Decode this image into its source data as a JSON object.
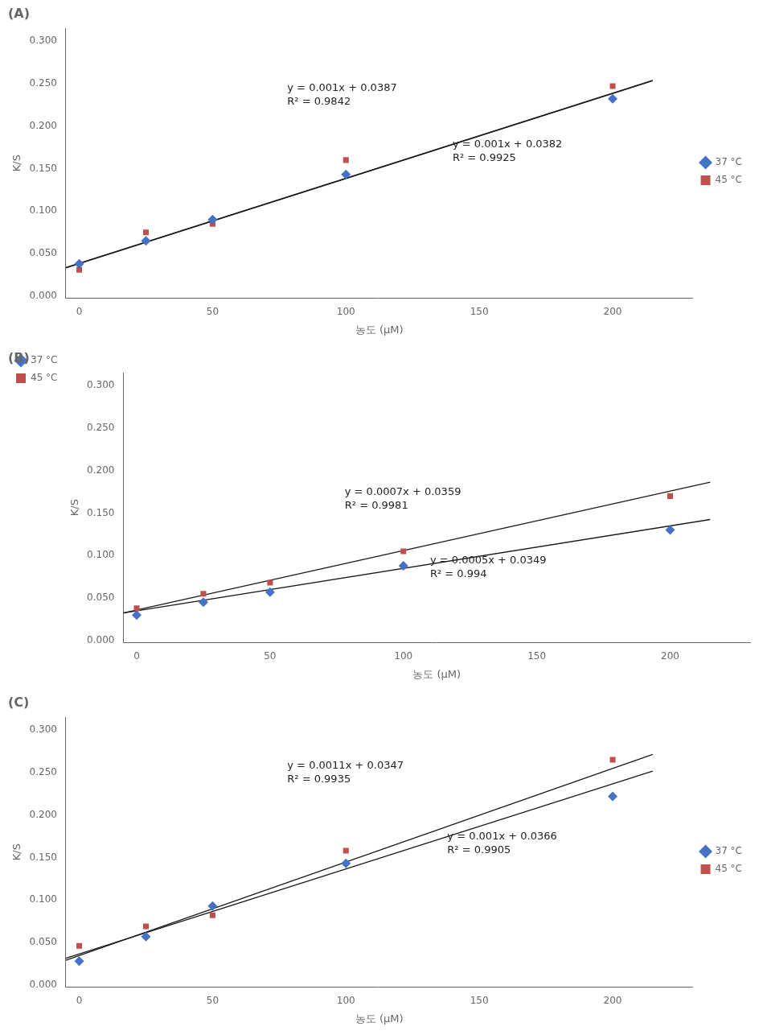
{
  "chart_data": [
    {
      "type": "scatter",
      "title": "(A)",
      "x_label": "농도 (μM)",
      "y_label": "K/S",
      "xlim": [
        -5,
        230
      ],
      "xticks": [
        0,
        50,
        100,
        150,
        200
      ],
      "ylim": [
        -0.002,
        0.315
      ],
      "yticks": [
        {
          "value": 0.0,
          "label": "0.000"
        },
        {
          "value": 0.05,
          "label": "0.050"
        },
        {
          "value": 0.1,
          "label": "0.100"
        },
        {
          "value": 0.15,
          "label": "0.150"
        },
        {
          "value": 0.2,
          "label": "0.200"
        },
        {
          "value": 0.25,
          "label": "0.250"
        },
        {
          "value": 0.3,
          "label": "0.300"
        }
      ],
      "grid": false,
      "legend": "right",
      "series": [
        {
          "name": "37 °C",
          "color": "#4472c4",
          "marker": "diamond",
          "x": [
            0,
            25,
            50,
            100,
            200
          ],
          "values": [
            0.038,
            0.065,
            0.09,
            0.143,
            0.232
          ]
        },
        {
          "name": "45 °C",
          "color": "#c0504d",
          "marker": "square",
          "x": [
            0,
            25,
            50,
            100,
            200
          ],
          "values": [
            0.031,
            0.075,
            0.085,
            0.16,
            0.247
          ]
        },
        {
          "type": "line",
          "color": "#1a1a1a",
          "x": [
            -5,
            215
          ],
          "values": [
            0.0337,
            0.2537
          ]
        },
        {
          "type": "line",
          "color": "#1a1a1a",
          "x": [
            -5,
            215
          ],
          "values": [
            0.0332,
            0.2532
          ]
        }
      ],
      "annotations": [
        {
          "text": [
            "y = 0.001x + 0.0387",
            "R² = 0.9842"
          ],
          "x": 78,
          "y": 0.238
        },
        {
          "text": [
            "y = 0.001x + 0.0382",
            "R² = 0.9925"
          ],
          "x": 140,
          "y": 0.172
        }
      ]
    },
    {
      "type": "scatter",
      "title": "(B)",
      "x_label": "농도 (μM)",
      "y_label": "K/S",
      "xlim": [
        -5,
        230
      ],
      "xticks": [
        0,
        50,
        100,
        150,
        200
      ],
      "ylim": [
        -0.002,
        0.315
      ],
      "yticks": [
        {
          "value": 0.0,
          "label": "0.000"
        },
        {
          "value": 0.05,
          "label": "0.050"
        },
        {
          "value": 0.1,
          "label": "0.100"
        },
        {
          "value": 0.15,
          "label": "0.150"
        },
        {
          "value": 0.2,
          "label": "0.200"
        },
        {
          "value": 0.25,
          "label": "0.250"
        },
        {
          "value": 0.3,
          "label": "0.300"
        }
      ],
      "grid": false,
      "legend": "upper left",
      "series": [
        {
          "name": "37 °C",
          "color": "#4472c4",
          "marker": "diamond",
          "x": [
            0,
            25,
            50,
            100,
            200
          ],
          "values": [
            0.03,
            0.045,
            0.057,
            0.088,
            0.13
          ]
        },
        {
          "name": "45 °C",
          "color": "#c0504d",
          "marker": "square",
          "x": [
            0,
            25,
            50,
            100,
            200
          ],
          "values": [
            0.038,
            0.055,
            0.068,
            0.105,
            0.17
          ]
        },
        {
          "type": "line",
          "color": "#1a1a1a",
          "x": [
            -5,
            215
          ],
          "values": [
            0.0324,
            0.1864
          ]
        },
        {
          "type": "line",
          "color": "#1a1a1a",
          "x": [
            -5,
            215
          ],
          "values": [
            0.0324,
            0.1424
          ]
        }
      ],
      "annotations": [
        {
          "text": [
            "y = 0.0007x + 0.0359",
            "R² = 0.9981"
          ],
          "x": 78,
          "y": 0.168
        },
        {
          "text": [
            "y = 0.0005x + 0.0349",
            "R² = 0.994"
          ],
          "x": 110,
          "y": 0.088
        }
      ]
    },
    {
      "type": "scatter",
      "title": "(C)",
      "x_label": "농도 (μM)",
      "y_label": "K/S",
      "xlim": [
        -5,
        230
      ],
      "xticks": [
        0,
        50,
        100,
        150,
        200
      ],
      "ylim": [
        -0.002,
        0.315
      ],
      "yticks": [
        {
          "value": 0.0,
          "label": "0.000"
        },
        {
          "value": 0.05,
          "label": "0.050"
        },
        {
          "value": 0.1,
          "label": "0.100"
        },
        {
          "value": 0.15,
          "label": "0.150"
        },
        {
          "value": 0.2,
          "label": "0.200"
        },
        {
          "value": 0.25,
          "label": "0.250"
        },
        {
          "value": 0.3,
          "label": "0.300"
        }
      ],
      "grid": false,
      "legend": "right",
      "series": [
        {
          "name": "37 °C",
          "color": "#4472c4",
          "marker": "diamond",
          "x": [
            0,
            25,
            50,
            100,
            200
          ],
          "values": [
            0.028,
            0.057,
            0.093,
            0.143,
            0.222
          ]
        },
        {
          "name": "45 °C",
          "color": "#c0504d",
          "marker": "square",
          "x": [
            0,
            25,
            50,
            100,
            200
          ],
          "values": [
            0.046,
            0.069,
            0.082,
            0.158,
            0.265
          ]
        },
        {
          "type": "line",
          "color": "#1a1a1a",
          "x": [
            -5,
            215
          ],
          "values": [
            0.0292,
            0.2712
          ]
        },
        {
          "type": "line",
          "color": "#1a1a1a",
          "x": [
            -5,
            215
          ],
          "values": [
            0.0316,
            0.2516
          ]
        }
      ],
      "annotations": [
        {
          "text": [
            "y = 0.0011x + 0.0347",
            "R² = 0.9935"
          ],
          "x": 78,
          "y": 0.252
        },
        {
          "text": [
            "y = 0.001x + 0.0366",
            "R² = 0.9905"
          ],
          "x": 138,
          "y": 0.168
        }
      ]
    }
  ]
}
